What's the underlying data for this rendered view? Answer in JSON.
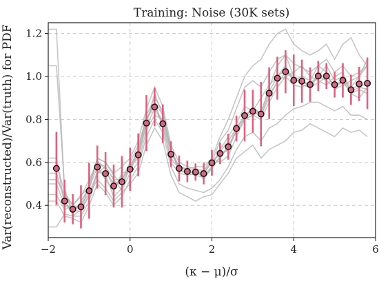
{
  "chart_data": {
    "type": "scatter",
    "title": "Training: Noise (30K sets)",
    "xlabel": "(κ − μ)/σ",
    "ylabel": "Var(reconstructed)/Var(truth) for PDF",
    "xlim": [
      -2,
      6
    ],
    "ylim": [
      0.25,
      1.25
    ],
    "xticks": [
      -2,
      0,
      2,
      4,
      6
    ],
    "yticks": [
      0.4,
      0.6,
      0.8,
      1.0,
      1.2
    ],
    "xtick_labels": [
      "−2",
      "0",
      "2",
      "4",
      "6"
    ],
    "ytick_labels": [
      "0.4",
      "0.6",
      "0.8",
      "1.0",
      "1.2"
    ],
    "grid": true,
    "colors": {
      "marker_fill": "#d9687f",
      "marker_edge": "#111111",
      "error_bar": "#e0607e",
      "realization": "#b3b3b3",
      "grid": "#c8c8c8"
    },
    "x": [
      -1.8,
      -1.6,
      -1.4,
      -1.2,
      -1.0,
      -0.8,
      -0.6,
      -0.4,
      -0.2,
      0.0,
      0.2,
      0.4,
      0.6,
      0.8,
      1.0,
      1.2,
      1.4,
      1.6,
      1.8,
      2.0,
      2.2,
      2.4,
      2.6,
      2.8,
      3.0,
      3.2,
      3.4,
      3.6,
      3.8,
      4.0,
      4.2,
      4.4,
      4.6,
      4.8,
      5.0,
      5.2,
      5.4,
      5.6,
      5.8
    ],
    "series": [
      {
        "values": [
          0.572,
          0.42,
          0.382,
          0.393,
          0.468,
          0.578,
          0.548,
          0.49,
          0.51,
          0.568,
          0.635,
          0.783,
          0.858,
          0.78,
          0.638,
          0.572,
          0.558,
          0.555,
          0.548,
          0.598,
          0.642,
          0.673,
          0.758,
          0.818,
          0.838,
          0.825,
          0.922,
          0.992,
          1.022,
          0.982,
          0.978,
          0.962,
          1.002,
          1.002,
          0.962,
          0.982,
          0.938,
          0.965,
          0.968
        ],
        "errors": [
          0.17,
          0.1,
          0.07,
          0.1,
          0.13,
          0.1,
          0.1,
          0.1,
          0.12,
          0.1,
          0.1,
          0.13,
          0.09,
          0.09,
          0.06,
          0.06,
          0.05,
          0.04,
          0.05,
          0.06,
          0.05,
          0.06,
          0.06,
          0.12,
          0.1,
          0.15,
          0.12,
          0.1,
          0.1,
          0.12,
          0.1,
          0.08,
          0.07,
          0.06,
          0.06,
          0.08,
          0.07,
          0.08,
          0.12
        ]
      }
    ],
    "realizations": [
      [
        1.22,
        0.45,
        0.4,
        0.44,
        0.52,
        0.6,
        0.57,
        0.48,
        0.52,
        0.6,
        0.68,
        0.8,
        0.88,
        0.76,
        0.62,
        0.57,
        0.55,
        0.56,
        0.55,
        0.6,
        0.65,
        0.7,
        0.76,
        0.82,
        0.85,
        0.83,
        0.95,
        1.05,
        1.1,
        1.0,
        0.96,
        0.95,
        1.0,
        1.05,
        0.98,
        1.0,
        0.95,
        1.0,
        1.08
      ],
      [
        1.05,
        0.48,
        0.35,
        0.35,
        0.42,
        0.55,
        0.58,
        0.52,
        0.47,
        0.55,
        0.6,
        0.75,
        0.82,
        0.8,
        0.65,
        0.58,
        0.57,
        0.54,
        0.56,
        0.62,
        0.6,
        0.63,
        0.72,
        0.8,
        0.82,
        0.8,
        0.88,
        0.95,
        1.0,
        1.02,
        1.05,
        1.0,
        0.98,
        0.96,
        1.0,
        1.02,
        0.92,
        0.9,
        0.95
      ],
      [
        0.62,
        0.4,
        0.38,
        0.37,
        0.5,
        0.62,
        0.6,
        0.54,
        0.5,
        0.58,
        0.62,
        0.78,
        0.92,
        0.82,
        0.66,
        0.56,
        0.56,
        0.57,
        0.52,
        0.58,
        0.66,
        0.72,
        0.78,
        0.86,
        0.84,
        0.9,
        0.96,
        1.0,
        1.05,
        0.98,
        1.0,
        0.98,
        1.05,
        1.02,
        0.94,
        0.96,
        0.98,
        1.0,
        1.05
      ],
      [
        0.55,
        0.42,
        0.36,
        0.42,
        0.48,
        0.58,
        0.52,
        0.47,
        0.55,
        0.56,
        0.64,
        0.77,
        0.85,
        0.78,
        0.6,
        0.55,
        0.54,
        0.55,
        0.54,
        0.58,
        0.62,
        0.68,
        0.74,
        0.8,
        0.86,
        0.82,
        0.9,
        0.98,
        1.0,
        0.96,
        0.95,
        0.97,
        1.0,
        0.98,
        0.95,
        0.98,
        0.92,
        0.94,
        0.92
      ],
      [
        0.5,
        0.4,
        0.39,
        0.4,
        0.46,
        0.55,
        0.56,
        0.5,
        0.52,
        0.58,
        0.64,
        0.8,
        0.86,
        0.79,
        0.64,
        0.58,
        0.56,
        0.55,
        0.55,
        0.6,
        0.64,
        0.66,
        0.77,
        0.8,
        0.82,
        0.84,
        0.93,
        1.0,
        1.03,
        0.98,
        0.98,
        0.96,
        1.0,
        1.0,
        0.96,
        0.98,
        0.94,
        0.96,
        0.96
      ],
      [
        0.45,
        0.38,
        0.4,
        0.38,
        0.44,
        0.56,
        0.54,
        0.44,
        0.48,
        0.58,
        0.66,
        0.82,
        0.9,
        0.84,
        0.66,
        0.56,
        0.55,
        0.54,
        0.53,
        0.57,
        0.63,
        0.66,
        0.75,
        0.81,
        0.83,
        0.82,
        0.92,
        0.97,
        1.02,
        1.0,
        0.98,
        0.95,
        0.97,
        1.0,
        0.96,
        0.97,
        0.93,
        0.95,
        0.94
      ],
      [
        0.6,
        0.46,
        0.4,
        0.45,
        0.48,
        0.62,
        0.6,
        0.55,
        0.58,
        0.62,
        0.7,
        0.85,
        0.95,
        0.86,
        0.68,
        0.6,
        0.58,
        0.57,
        0.56,
        0.6,
        0.7,
        0.75,
        0.85,
        0.95,
        0.98,
        0.95,
        1.02,
        1.08,
        1.1,
        1.06,
        1.04,
        1.02,
        1.05,
        1.08,
        1.02,
        1.05,
        1.0,
        1.02,
        1.05
      ],
      [
        0.42,
        0.35,
        0.34,
        0.32,
        0.4,
        0.5,
        0.46,
        0.4,
        0.44,
        0.52,
        0.58,
        0.72,
        0.8,
        0.74,
        0.58,
        0.5,
        0.48,
        0.47,
        0.46,
        0.48,
        0.52,
        0.58,
        0.66,
        0.72,
        0.74,
        0.7,
        0.76,
        0.78,
        0.82,
        0.85,
        0.86,
        0.88,
        0.88,
        0.86,
        0.84,
        0.86,
        0.82,
        0.82,
        0.8
      ],
      [
        0.3,
        0.36,
        0.35,
        0.38,
        0.45,
        0.52,
        0.48,
        0.42,
        0.46,
        0.5,
        0.55,
        0.68,
        0.76,
        0.7,
        0.54,
        0.46,
        0.44,
        0.42,
        0.44,
        0.45,
        0.5,
        0.55,
        0.62,
        0.65,
        0.68,
        0.62,
        0.66,
        0.68,
        0.7,
        0.74,
        0.75,
        0.78,
        0.76,
        0.74,
        0.72,
        0.76,
        0.74,
        0.75,
        0.72
      ],
      [
        0.52,
        0.45,
        0.38,
        0.4,
        0.5,
        0.6,
        0.58,
        0.52,
        0.52,
        0.58,
        0.66,
        0.8,
        0.88,
        0.82,
        0.66,
        0.58,
        0.57,
        0.58,
        0.58,
        0.62,
        0.72,
        0.8,
        0.9,
        1.0,
        1.05,
        1.08,
        1.15,
        1.2,
        1.22,
        1.15,
        1.12,
        1.1,
        1.12,
        1.15,
        1.08,
        1.15,
        1.18,
        1.1,
        1.05
      ]
    ]
  }
}
